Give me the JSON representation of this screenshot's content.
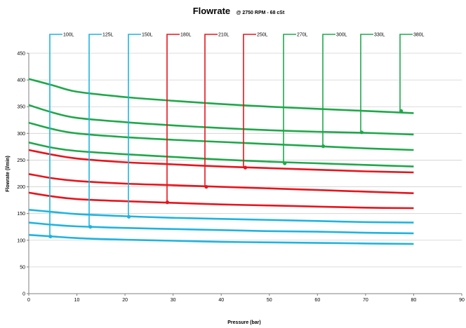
{
  "chart_data": {
    "type": "line",
    "title": "Flowrate",
    "subtitle": "@ 2750 RPM - 68 cSt",
    "xlabel": "Pressure (bar)",
    "ylabel": "Flowrate (l/min)",
    "xlim": [
      0,
      90
    ],
    "ylim": [
      0,
      450
    ],
    "xticks": [
      0,
      10,
      20,
      30,
      40,
      50,
      60,
      70,
      80,
      90
    ],
    "yticks": [
      0,
      50,
      100,
      150,
      200,
      250,
      300,
      350,
      400,
      450
    ],
    "grid": "horizontal",
    "legend": "top",
    "x": [
      0,
      5,
      10,
      20,
      30,
      40,
      50,
      60,
      70,
      80
    ],
    "series": [
      {
        "name": "100L",
        "color": "#1fb4e0",
        "values": [
          110,
          107,
          104,
          101,
          99,
          97,
          96,
          95,
          94,
          93
        ],
        "marker_x": 4.5,
        "marker_y": 107
      },
      {
        "name": "125L",
        "color": "#1fb4e0",
        "values": [
          133,
          129,
          126,
          123,
          121,
          119,
          117,
          116,
          114,
          113
        ],
        "marker_x": 12.8,
        "marker_y": 125
      },
      {
        "name": "150L",
        "color": "#1fb4e0",
        "values": [
          157,
          153,
          149,
          145,
          142,
          140,
          138,
          136,
          134,
          133
        ],
        "marker_x": 20.8,
        "marker_y": 144
      },
      {
        "name": "180L",
        "color": "#e8141c",
        "values": [
          189,
          182,
          177,
          173,
          170,
          167,
          165,
          163,
          161,
          160
        ],
        "marker_x": 28.8,
        "marker_y": 171
      },
      {
        "name": "210L",
        "color": "#e8141c",
        "values": [
          224,
          216,
          211,
          206,
          203,
          200,
          197,
          194,
          191,
          188
        ],
        "marker_x": 36.9,
        "marker_y": 200
      },
      {
        "name": "250L",
        "color": "#e8141c",
        "values": [
          269,
          260,
          253,
          246,
          242,
          238,
          235,
          232,
          229,
          227
        ],
        "marker_x": 45,
        "marker_y": 236
      },
      {
        "name": "270L",
        "color": "#1fa84a",
        "values": [
          283,
          273,
          267,
          261,
          256,
          251,
          247,
          244,
          241,
          238
        ],
        "marker_x": 53.2,
        "marker_y": 244
      },
      {
        "name": "300L",
        "color": "#1fa84a",
        "values": [
          320,
          308,
          300,
          293,
          288,
          284,
          280,
          276,
          272,
          269
        ],
        "marker_x": 61.2,
        "marker_y": 276
      },
      {
        "name": "330L",
        "color": "#1fa84a",
        "values": [
          353,
          339,
          329,
          321,
          315,
          310,
          306,
          303,
          301,
          298
        ],
        "marker_x": 69.2,
        "marker_y": 302
      },
      {
        "name": "380L",
        "color": "#1fa84a",
        "values": [
          402,
          390,
          378,
          368,
          361,
          355,
          350,
          346,
          342,
          338
        ],
        "marker_x": 77.4,
        "marker_y": 342
      }
    ]
  }
}
